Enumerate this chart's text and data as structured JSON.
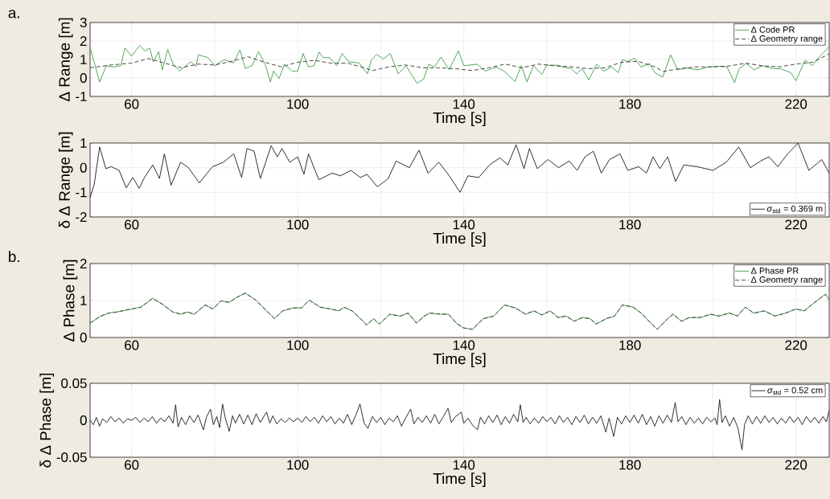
{
  "chart_data": [
    {
      "type": "line",
      "xlabel": "Time [s]",
      "ylabel": "Δ Range [m]",
      "annotations": [
        "a."
      ],
      "xlim": [
        50,
        228
      ],
      "ylim": [
        -1,
        3
      ],
      "xticks": [
        {
          "value": 50,
          "label": null
        },
        60,
        {
          "value": 80,
          "label": null
        },
        100,
        {
          "value": 120,
          "label": null
        },
        140,
        {
          "value": 160,
          "label": null
        },
        180,
        {
          "value": 200,
          "label": null
        },
        220
      ],
      "yticks": [
        -1,
        0,
        1,
        2,
        3
      ],
      "grid": true,
      "legend": "top right",
      "series": [
        {
          "name": "Δ Code PR",
          "color": "#3f9f45",
          "line_style": "solid",
          "x": [
            50,
            52.3,
            53.9,
            55.5,
            57.4,
            58.4,
            60,
            61.9,
            63.2,
            64.4,
            65.2,
            66.5,
            67.4,
            68.7,
            70,
            71.6,
            74.2,
            75.5,
            76.1,
            78.4,
            80,
            82.3,
            84.5,
            86.1,
            87.4,
            89,
            90.6,
            92.3,
            93.4,
            94.2,
            95.5,
            96.8,
            98.7,
            100,
            101.3,
            102.6,
            103.9,
            105.2,
            106.1,
            107.7,
            109.4,
            110.7,
            112.3,
            114.8,
            116.8,
            117.7,
            119,
            120.6,
            122.3,
            124.2,
            126.1,
            128.7,
            130.3,
            131.6,
            132.9,
            134.5,
            136.5,
            137.4,
            138.7,
            140,
            143.2,
            145.2,
            147.8,
            149.7,
            152.3,
            153.9,
            155.2,
            156.8,
            158.8,
            160,
            162.6,
            163.9,
            165.9,
            167.2,
            168.5,
            170.1,
            172,
            173.7,
            175.6,
            177.2,
            178.2,
            179.5,
            181.1,
            182.7,
            184.7,
            186,
            187.9,
            189.8,
            191.5,
            193.7,
            196.3,
            198.9,
            201.5,
            203.4,
            205.2,
            206.3,
            208,
            209.9,
            211.9,
            214.5,
            216.4,
            218.7,
            220,
            222.2,
            223.9,
            226.1,
            228
          ],
          "values": [
            1.66,
            -0.22,
            0.66,
            0.59,
            0.66,
            1.62,
            1.18,
            1.75,
            1.46,
            1.62,
            0.88,
            1.42,
            0.44,
            1.54,
            0.74,
            0.37,
            0.88,
            0.63,
            1.25,
            1.1,
            0.66,
            0.99,
            0.81,
            1.51,
            0.51,
            0.66,
            1.42,
            0.66,
            -0.22,
            0.37,
            -0.04,
            0.74,
            0.37,
            0.37,
            1.32,
            0.59,
            0.66,
            1.4,
            1.1,
            1.1,
            0.66,
            1.32,
            0.88,
            0.81,
            0.22,
            0.96,
            1.28,
            1.03,
            1.32,
            0.22,
            0.66,
            -0.29,
            -0.07,
            0.74,
            0.59,
            1.13,
            0.44,
            0.88,
            1.46,
            0.66,
            0.74,
            0.37,
            0.59,
            0.37,
            -0.19,
            0.66,
            -0.22,
            0.66,
            0.19,
            0.69,
            0.69,
            0.59,
            0.51,
            0.22,
            0.51,
            -0.1,
            0.74,
            0.37,
            0.59,
            0.29,
            0.99,
            0.88,
            1.07,
            0.59,
            0.78,
            0.29,
            0.04,
            1.25,
            0.44,
            0.54,
            0.44,
            0.59,
            0.63,
            0.59,
            -0.25,
            0.51,
            0.78,
            0.44,
            0.66,
            0.51,
            0.49,
            0.29,
            -0.15,
            0.96,
            0.66,
            1.25,
            1.69
          ]
        },
        {
          "name": "Δ Geometry range",
          "color": "#333333",
          "line_style": "dashed",
          "x": [
            50,
            55,
            60,
            64,
            68,
            72,
            76,
            80,
            84,
            88,
            92,
            96,
            100,
            104,
            108,
            112,
            116,
            118,
            122,
            126,
            130,
            134,
            138,
            142,
            146,
            150,
            154,
            158,
            162,
            166,
            170,
            174,
            178,
            182,
            186,
            188,
            192,
            196,
            200,
            204,
            208,
            212,
            216,
            220,
            224,
            228
          ],
          "values": [
            0.55,
            0.7,
            0.8,
            1.05,
            0.8,
            0.55,
            0.75,
            0.7,
            0.9,
            1.15,
            0.85,
            0.6,
            0.85,
            0.95,
            0.8,
            0.8,
            0.55,
            0.4,
            0.6,
            0.7,
            0.55,
            0.55,
            0.5,
            0.4,
            0.55,
            0.75,
            0.55,
            0.75,
            0.65,
            0.6,
            0.5,
            0.55,
            0.85,
            0.9,
            0.6,
            0.35,
            0.5,
            0.6,
            0.6,
            0.65,
            0.8,
            0.65,
            0.6,
            0.75,
            0.85,
            1.3
          ]
        }
      ]
    },
    {
      "type": "line",
      "xlabel": "Time [s]",
      "ylabel": "δ Δ Range [m]",
      "xlim": [
        50,
        228
      ],
      "ylim": [
        -2,
        1
      ],
      "xticks": [
        {
          "value": 50,
          "label": null
        },
        60,
        {
          "value": 80,
          "label": null
        },
        100,
        {
          "value": 120,
          "label": null
        },
        140,
        {
          "value": 160,
          "label": null
        },
        180,
        {
          "value": 200,
          "label": null
        },
        220
      ],
      "yticks": [
        -2,
        -1,
        0,
        1
      ],
      "grid": true,
      "legend": "bottom right",
      "series": [
        {
          "name": "*σ*$_{std}$ = 0.369 m",
          "color": "#1a1a1a",
          "line_style": "solid",
          "x": [
            50,
            51,
            52.3,
            53.8,
            55.1,
            57,
            58.7,
            60.3,
            61.8,
            63.1,
            65.1,
            66.7,
            67.9,
            69.5,
            71.8,
            73.7,
            76.3,
            79.5,
            82.1,
            84.6,
            86.5,
            87.8,
            89.5,
            91,
            93.6,
            95.1,
            96.2,
            98.1,
            100,
            101.5,
            102.6,
            105.1,
            108.3,
            110.3,
            112.8,
            115.1,
            116.7,
            119.2,
            121.8,
            123.7,
            126.9,
            129.2,
            131.4,
            134,
            136.5,
            139.1,
            141,
            143.6,
            146.2,
            148.7,
            150.6,
            152.6,
            154.5,
            155.8,
            157.7,
            160.3,
            162.8,
            165.4,
            167.3,
            169.2,
            171.2,
            173.1,
            175.1,
            177.6,
            179.5,
            182.1,
            184,
            185.6,
            187.2,
            189.1,
            191,
            193,
            196.2,
            200,
            203.2,
            206.2,
            209,
            211.5,
            213.5,
            215.6,
            218,
            220.5,
            223.1,
            226.2,
            228
          ],
          "values": [
            -1.22,
            -0.67,
            0.84,
            -0.04,
            0.04,
            -0.11,
            -0.82,
            -0.4,
            -0.84,
            -0.4,
            0.11,
            -0.44,
            0.56,
            -0.71,
            0.22,
            0,
            -0.62,
            0.04,
            0.22,
            0.56,
            -0.4,
            0.78,
            0.67,
            -0.44,
            0.89,
            0.44,
            0.78,
            0.22,
            0.44,
            -0.27,
            0.56,
            -0.49,
            -0.22,
            -0.33,
            -0.11,
            -0.4,
            -0.27,
            -0.78,
            -0.44,
            0.27,
            0,
            0.71,
            -0.22,
            0.22,
            -0.33,
            -1.0,
            -0.33,
            -0.4,
            0.11,
            0.4,
            0.11,
            0.93,
            -0.04,
            0.78,
            -0.04,
            0.33,
            0,
            0.27,
            -0.11,
            0.44,
            0.67,
            -0.22,
            0.33,
            0.56,
            -0.11,
            0.04,
            -0.22,
            0.44,
            -0.04,
            0.44,
            -0.56,
            0.11,
            0.04,
            -0.11,
            0.22,
            0.84,
            0,
            0.27,
            0.44,
            0.04,
            0.56,
            1.0,
            -0.11,
            0.33,
            -0.22
          ]
        }
      ]
    },
    {
      "type": "line",
      "xlabel": "Time [s]",
      "ylabel": "Δ Phase [m]",
      "annotations": [
        "b."
      ],
      "xlim": [
        50,
        228
      ],
      "ylim": [
        0,
        2
      ],
      "xticks": [
        {
          "value": 50,
          "label": null
        },
        60,
        {
          "value": 80,
          "label": null
        },
        100,
        {
          "value": 120,
          "label": null
        },
        140,
        {
          "value": 160,
          "label": null
        },
        180,
        {
          "value": 200,
          "label": null
        },
        220
      ],
      "yticks": [
        0,
        1,
        2
      ],
      "grid": true,
      "legend": "top right",
      "series": [
        {
          "name": "Δ Phase PR",
          "color": "#3f9f45",
          "line_style": "solid",
          "x": [
            50,
            52.6,
            54.5,
            56.4,
            60,
            62.2,
            65.1,
            67.3,
            69.9,
            71.9,
            73.4,
            75.1,
            77.7,
            79.6,
            81.5,
            83.5,
            85.4,
            87.4,
            89.9,
            92.5,
            94.4,
            96.4,
            98.9,
            100.9,
            102.8,
            105.4,
            108,
            109.9,
            111.2,
            113.1,
            115.1,
            116.6,
            118.3,
            119.6,
            122.2,
            124.7,
            126.6,
            128.6,
            130.5,
            131.8,
            134.4,
            136.3,
            138.2,
            139.9,
            142.1,
            144.7,
            147.2,
            149.8,
            152.4,
            154.9,
            156.9,
            158.8,
            160.8,
            162.7,
            164.6,
            166.6,
            168.5,
            170.5,
            171.8,
            174.3,
            176.3,
            178.2,
            180.8,
            182.7,
            185.3,
            186.6,
            189.1,
            190.4,
            192.4,
            194.3,
            196.9,
            199.5,
            201.4,
            204,
            205.9,
            207.8,
            209.8,
            212.4,
            214.9,
            217.5,
            220,
            222,
            224.5,
            227.1,
            228
          ],
          "values": [
            0.39,
            0.58,
            0.66,
            0.69,
            0.77,
            0.82,
            1.06,
            0.91,
            0.69,
            0.63,
            0.69,
            0.63,
            0.88,
            0.77,
            0.99,
            0.95,
            1.09,
            1.2,
            1.01,
            0.72,
            0.51,
            0.72,
            0.8,
            0.8,
            1.01,
            0.82,
            0.77,
            0.72,
            0.82,
            0.72,
            0.51,
            0.34,
            0.51,
            0.36,
            0.63,
            0.58,
            0.66,
            0.39,
            0.58,
            0.66,
            0.63,
            0.63,
            0.39,
            0.26,
            0.22,
            0.51,
            0.58,
            0.88,
            0.8,
            0.63,
            0.72,
            0.61,
            0.72,
            0.54,
            0.58,
            0.44,
            0.54,
            0.51,
            0.36,
            0.51,
            0.58,
            0.88,
            0.82,
            0.66,
            0.36,
            0.22,
            0.51,
            0.63,
            0.44,
            0.54,
            0.54,
            0.63,
            0.58,
            0.66,
            0.58,
            0.82,
            0.66,
            0.72,
            0.58,
            0.66,
            0.77,
            0.72,
            0.95,
            1.17,
            1.03
          ]
        },
        {
          "name": "Δ Geometry range",
          "color": "#333333",
          "line_style": "dashed",
          "x": [
            50,
            52.6,
            54.5,
            56.4,
            60,
            62.2,
            65.1,
            67.3,
            69.9,
            71.9,
            73.4,
            75.1,
            77.7,
            79.6,
            81.5,
            83.5,
            85.4,
            87.4,
            89.9,
            92.5,
            94.4,
            96.4,
            98.9,
            100.9,
            102.8,
            105.4,
            108,
            109.9,
            111.2,
            113.1,
            115.1,
            116.6,
            118.3,
            119.6,
            122.2,
            124.7,
            126.6,
            128.6,
            130.5,
            131.8,
            134.4,
            136.3,
            138.2,
            139.9,
            142.1,
            144.7,
            147.2,
            149.8,
            152.4,
            154.9,
            156.9,
            158.8,
            160.8,
            162.7,
            164.6,
            166.6,
            168.5,
            170.5,
            171.8,
            174.3,
            176.3,
            178.2,
            180.8,
            182.7,
            185.3,
            186.6,
            189.1,
            190.4,
            192.4,
            194.3,
            196.9,
            199.5,
            201.4,
            204,
            205.9,
            207.8,
            209.8,
            212.4,
            214.9,
            217.5,
            220,
            222,
            224.5,
            227.1,
            228
          ],
          "values": [
            0.39,
            0.58,
            0.66,
            0.69,
            0.77,
            0.82,
            1.06,
            0.91,
            0.69,
            0.63,
            0.69,
            0.63,
            0.88,
            0.77,
            0.99,
            0.95,
            1.09,
            1.2,
            1.01,
            0.72,
            0.51,
            0.72,
            0.8,
            0.8,
            1.01,
            0.82,
            0.77,
            0.72,
            0.82,
            0.72,
            0.51,
            0.34,
            0.51,
            0.36,
            0.63,
            0.58,
            0.66,
            0.39,
            0.58,
            0.66,
            0.63,
            0.63,
            0.39,
            0.26,
            0.22,
            0.51,
            0.58,
            0.88,
            0.8,
            0.63,
            0.72,
            0.61,
            0.72,
            0.54,
            0.58,
            0.44,
            0.54,
            0.51,
            0.36,
            0.51,
            0.58,
            0.88,
            0.82,
            0.66,
            0.36,
            0.22,
            0.51,
            0.63,
            0.44,
            0.54,
            0.54,
            0.63,
            0.58,
            0.66,
            0.58,
            0.82,
            0.66,
            0.72,
            0.58,
            0.66,
            0.77,
            0.72,
            0.95,
            1.17,
            1.03
          ]
        }
      ]
    },
    {
      "type": "line",
      "xlabel": "Time [s]",
      "ylabel": "δ Δ Phase [m]",
      "xlim": [
        50,
        228
      ],
      "ylim": [
        -0.05,
        0.05
      ],
      "xticks": [
        {
          "value": 50,
          "label": null
        },
        60,
        {
          "value": 80,
          "label": null
        },
        100,
        {
          "value": 120,
          "label": null
        },
        140,
        {
          "value": 160,
          "label": null
        },
        180,
        {
          "value": 200,
          "label": null
        },
        220
      ],
      "yticks": [
        -0.05,
        0,
        0.05
      ],
      "grid": true,
      "legend": "top right",
      "series": [
        {
          "name": "*σ*$_{std}$ = 0.52 cm",
          "color": "#1a1a1a",
          "line_style": "solid",
          "x": [
            50,
            50.8,
            51.5,
            52.3,
            53,
            54,
            55,
            56,
            57,
            58,
            59,
            60,
            61,
            62,
            63,
            64,
            65,
            66,
            67,
            68,
            69,
            70,
            70.6,
            71.2,
            72,
            73,
            74,
            75,
            76,
            77.3,
            78,
            79,
            79.7,
            80.5,
            81.2,
            81.9,
            82.6,
            83.5,
            84.3,
            85,
            86,
            87,
            88,
            89,
            90,
            91,
            92.5,
            93.3,
            94,
            95,
            96,
            97,
            98,
            99,
            100,
            101,
            102,
            103,
            104,
            105,
            106,
            107,
            108,
            109,
            110,
            111,
            112,
            113,
            114,
            115,
            116,
            116.9,
            118,
            119,
            120,
            121,
            122,
            123,
            124,
            125,
            126,
            127.2,
            128,
            129,
            130,
            131,
            132,
            133,
            134,
            135,
            136.2,
            137,
            138,
            139.4,
            140,
            141,
            142,
            143.3,
            144,
            145,
            146,
            147,
            148,
            149,
            150,
            151,
            152,
            153,
            153.6,
            154.3,
            155,
            156,
            157,
            158,
            159,
            160,
            161,
            162,
            163,
            164,
            165,
            166,
            167,
            168,
            169,
            170,
            171,
            172,
            173,
            174.2,
            175,
            176.1,
            177,
            178,
            179,
            180,
            181,
            182,
            183,
            184,
            185,
            186,
            187,
            188,
            189,
            190,
            190.9,
            191.6,
            192.5,
            193.5,
            194.5,
            195.5,
            196.5,
            197.5,
            198.5,
            199.5,
            200.5,
            201,
            201.6,
            202.2,
            203,
            204,
            205,
            206,
            207,
            207.6,
            208.5,
            209.5,
            210.5,
            211.5,
            212.5,
            213.5,
            214.5,
            215.5,
            216.5,
            217.5,
            218.5,
            219.5,
            220.5,
            221.5,
            222.5,
            223.5,
            224.5,
            225.5,
            226.5,
            227.3,
            228
          ],
          "values": [
            0,
            -0.006,
            0.004,
            -0.008,
            0.002,
            -0.003,
            0.005,
            -0.002,
            0.003,
            -0.004,
            0.002,
            0,
            0.004,
            -0.003,
            0.003,
            -0.002,
            0.005,
            -0.004,
            0.003,
            -0.002,
            0.006,
            -0.004,
            0.021,
            -0.009,
            0.004,
            -0.006,
            0.006,
            -0.003,
            0.007,
            -0.013,
            0.004,
            0.015,
            -0.006,
            0.005,
            -0.01,
            0.022,
            0.002,
            -0.015,
            0.006,
            -0.004,
            0.008,
            -0.005,
            0.007,
            -0.006,
            0.009,
            -0.003,
            0.011,
            -0.004,
            0.006,
            -0.005,
            0.002,
            -0.003,
            0.003,
            -0.002,
            0.003,
            -0.003,
            0.005,
            -0.002,
            0.004,
            -0.004,
            0.006,
            -0.002,
            0.005,
            -0.005,
            0.003,
            -0.004,
            0.008,
            -0.006,
            0.007,
            0.022,
            -0.004,
            -0.011,
            0.005,
            -0.003,
            0.004,
            -0.006,
            0.003,
            -0.002,
            0.006,
            -0.008,
            0.003,
            0.015,
            -0.005,
            0.004,
            -0.003,
            0.006,
            -0.004,
            0.008,
            -0.005,
            0.004,
            0.016,
            -0.003,
            0.005,
            0.011,
            -0.004,
            0.003,
            -0.006,
            -0.013,
            0.004,
            -0.005,
            0.006,
            -0.003,
            0.007,
            -0.006,
            0.005,
            -0.004,
            0.008,
            -0.002,
            0.021,
            -0.003,
            0.004,
            -0.005,
            0.003,
            -0.004,
            0.005,
            -0.002,
            0.004,
            -0.005,
            0.006,
            -0.003,
            0.004,
            -0.006,
            0.005,
            -0.003,
            0.007,
            -0.005,
            0.004,
            -0.004,
            0.006,
            -0.016,
            0.003,
            -0.022,
            0.004,
            -0.005,
            0.006,
            -0.003,
            0.007,
            -0.004,
            0.008,
            -0.006,
            0.005,
            -0.008,
            0.006,
            -0.004,
            0.007,
            -0.003,
            0.024,
            -0.002,
            0.005,
            -0.006,
            0.004,
            -0.004,
            0.003,
            -0.005,
            0.004,
            -0.002,
            0.003,
            -0.006,
            0.028,
            -0.003,
            0.006,
            -0.008,
            0.004,
            -0.01,
            -0.04,
            -0.006,
            0.006,
            -0.005,
            0.005,
            -0.004,
            0.006,
            -0.003,
            0.004,
            -0.005,
            0.003,
            -0.004,
            0.005,
            -0.003,
            0.004,
            -0.006,
            0.005,
            -0.003,
            0.004,
            -0.004,
            0.005,
            -0.002,
            0.013
          ]
        }
      ]
    }
  ]
}
